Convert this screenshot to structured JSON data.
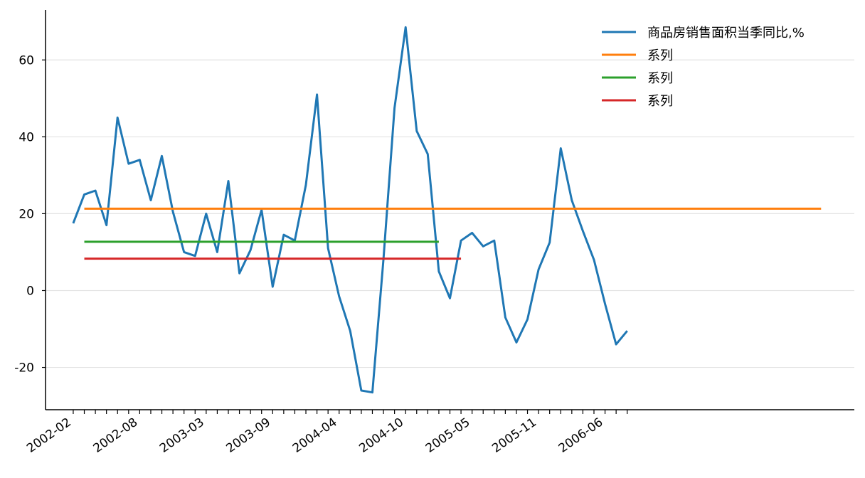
{
  "chart_data": {
    "type": "line",
    "grid": "horizontal",
    "legend_position": "top-right",
    "y_ticks": [
      -20,
      0,
      20,
      40,
      60
    ],
    "ylim": [
      -31,
      73
    ],
    "x_labels": [
      "2002-02",
      "2002-08",
      "2003-03",
      "2003-09",
      "2004-04",
      "2004-10",
      "2005-05",
      "2005-11",
      "2006-06"
    ],
    "x_label_index": [
      0,
      6,
      12,
      18,
      24,
      30,
      36,
      42,
      48
    ],
    "x_tick_count": 51,
    "x_range": [
      -2.5,
      70.5
    ],
    "series": [
      {
        "name": "商品房销售面积当季同比,%",
        "color": "#1f77b4",
        "kind": "line",
        "values": [
          17.5,
          25.0,
          26.0,
          17.0,
          45.0,
          33.0,
          34.0,
          23.5,
          35.0,
          20.5,
          10.0,
          9.0,
          20.0,
          10.0,
          28.5,
          4.5,
          10.5,
          21.0,
          1.0,
          14.5,
          13.0,
          27.5,
          51.0,
          11.0,
          -1.5,
          -10.5,
          -26.0,
          -26.5,
          8.0,
          47.5,
          68.5,
          41.5,
          35.5,
          5.0,
          -2.0,
          13.0,
          15.0,
          11.5,
          13.0,
          -7.0,
          -13.5,
          -7.5,
          5.5,
          12.5,
          37.0,
          23.5,
          15.5,
          8.0,
          -3.5,
          -14.0,
          -10.5
        ]
      },
      {
        "name": "系列",
        "color": "#ff7f0e",
        "kind": "hline",
        "value": 21.3,
        "x_start": 1,
        "x_end": 67.5
      },
      {
        "name": "系列",
        "color": "#2ca02c",
        "kind": "hline",
        "value": 12.7,
        "x_start": 1,
        "x_end": 33
      },
      {
        "name": "系列",
        "color": "#d62728",
        "kind": "hline",
        "value": 8.3,
        "x_start": 1,
        "x_end": 35
      }
    ]
  }
}
